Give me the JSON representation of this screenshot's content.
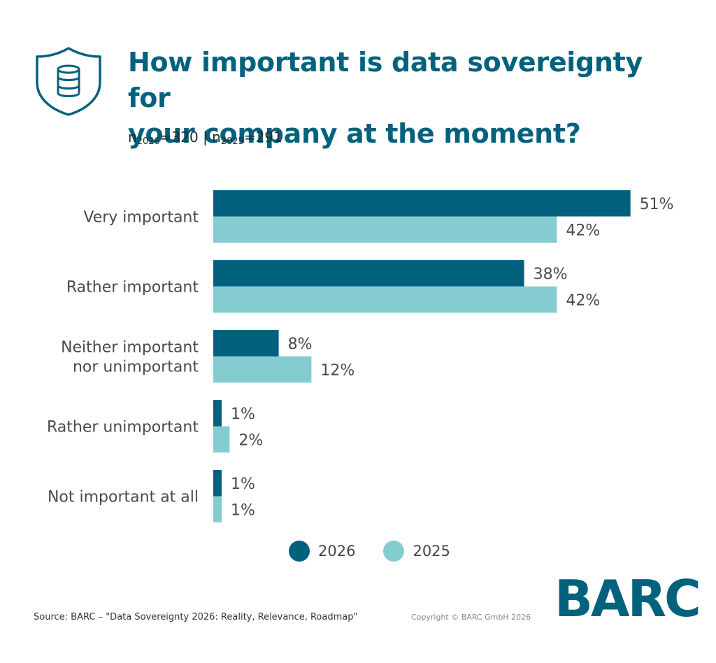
{
  "header": {
    "icon": "database-shield-icon",
    "title_line1": "How important is data sovereignty for",
    "title_line2": "your company at the moment?",
    "n_label_a": "n",
    "n_sub_a": "2026",
    "n_val_a": "=320",
    "separator": " | ",
    "n_label_b": "n",
    "n_sub_b": "2025",
    "n_val_b": "=291"
  },
  "colors": {
    "dark": "#02627e",
    "light": "#85ccd0",
    "title": "#02627e",
    "text": "#4a4a4a"
  },
  "chart_data": {
    "type": "bar",
    "orientation": "horizontal",
    "categories": [
      [
        "Very important"
      ],
      [
        "Rather important"
      ],
      [
        "Neither important",
        "nor unimportant"
      ],
      [
        "Rather unimportant"
      ],
      [
        "Not important at all"
      ]
    ],
    "series": [
      {
        "name": "2026",
        "color": "#02627e",
        "values": [
          51,
          38,
          8,
          1,
          1
        ],
        "labels": [
          "51%",
          "38%",
          "8%",
          "1%",
          "1%"
        ]
      },
      {
        "name": "2025",
        "color": "#85ccd0",
        "values": [
          42,
          42,
          12,
          2,
          1
        ],
        "labels": [
          "42%",
          "42%",
          "12%",
          "2%",
          "1%"
        ]
      }
    ],
    "unit": "%",
    "xlim": [
      0,
      51
    ],
    "grid": false,
    "legend": "bottom"
  },
  "footer": {
    "source": "Source: BARC – \"Data Sovereignty 2026: Reality, Relevance, Roadmap\"",
    "copyright": "Copyright © BARC GmbH 2026",
    "logo": "BARC"
  }
}
